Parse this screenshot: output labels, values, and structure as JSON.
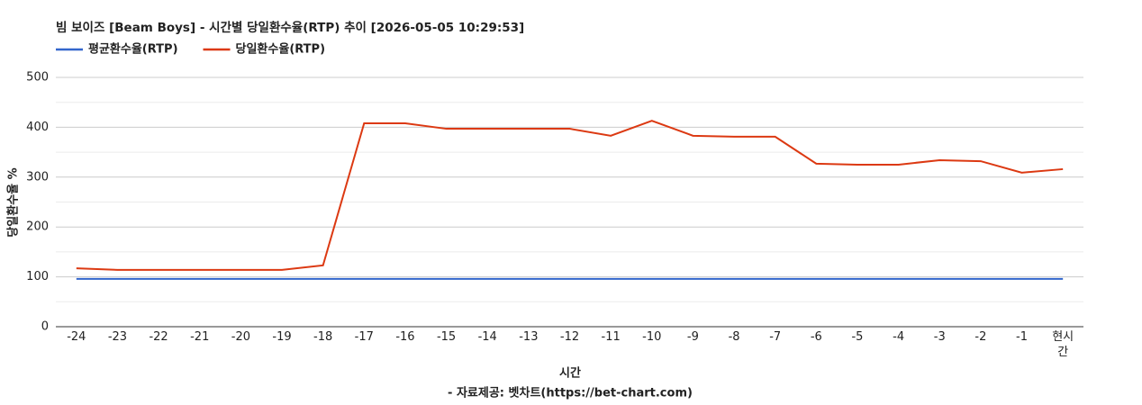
{
  "chart_data": {
    "type": "line",
    "title": "빔 보이즈 [Beam Boys] - 시간별 당일환수율(RTP) 추이 [2026-05-05 10:29:53]",
    "x_label": "시간",
    "y_label": "당일환수율 %",
    "source": "- 자료제공: 벳차트(https://bet-chart.com)",
    "categories": [
      "-24",
      "-23",
      "-22",
      "-21",
      "-20",
      "-19",
      "-18",
      "-17",
      "-16",
      "-15",
      "-14",
      "-13",
      "-12",
      "-11",
      "-10",
      "-9",
      "-8",
      "-7",
      "-6",
      "-5",
      "-4",
      "-3",
      "-2",
      "-1",
      "현시간"
    ],
    "series": [
      {
        "name": "평균환수율(RTP)",
        "color": "#3366cc",
        "values": [
          96,
          96,
          96,
          96,
          96,
          96,
          96,
          96,
          96,
          96,
          96,
          96,
          96,
          96,
          96,
          96,
          96,
          96,
          96,
          96,
          96,
          96,
          96,
          96,
          96
        ]
      },
      {
        "name": "당일환수율(RTP)",
        "color": "#dc3912",
        "values": [
          117,
          114,
          114,
          114,
          114,
          114,
          123,
          408,
          408,
          397,
          397,
          397,
          397,
          383,
          413,
          383,
          381,
          381,
          327,
          325,
          325,
          334,
          332,
          309,
          316
        ]
      }
    ],
    "ylim": [
      0,
      500
    ],
    "yticks": [
      0,
      100,
      200,
      300,
      400,
      500
    ],
    "minor_yticks": [
      50,
      150,
      250,
      350,
      450
    ],
    "grid": true,
    "legend": "top"
  }
}
